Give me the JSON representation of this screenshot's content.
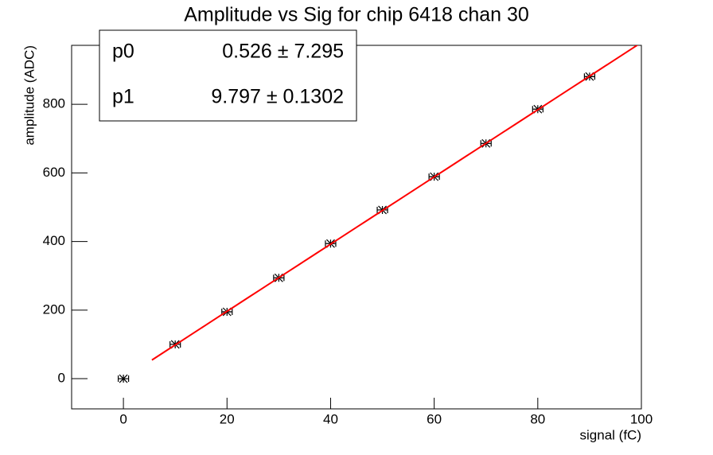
{
  "chart_data": {
    "type": "scatter",
    "title": "Amplitude vs Sig for chip 6418 chan 30",
    "x_label": "signal (fC)",
    "y_label": "amplitude (ADC)",
    "x": [
      0,
      10,
      20,
      30,
      40,
      50,
      60,
      70,
      80,
      90
    ],
    "xerr": [
      1,
      1,
      1,
      1,
      1,
      1,
      1,
      1,
      1,
      1
    ],
    "series": [
      {
        "color": "#000000",
        "values": [
          0,
          100,
          195,
          294,
          394,
          492,
          589,
          686,
          786,
          881
        ]
      }
    ],
    "xlim": [
      -10,
      100
    ],
    "ylim": [
      -88,
      972
    ],
    "xticks": [
      0,
      20,
      40,
      60,
      80,
      100
    ],
    "yticks": [
      0,
      200,
      400,
      600,
      800
    ],
    "fit": {
      "color": "#ff0000",
      "range": [
        5.5,
        100
      ]
    },
    "stats": [
      {
        "name": "p0",
        "label": "0.526 ± 7.295",
        "value": 0.526,
        "error": 7.295
      },
      {
        "name": "p1",
        "label": "9.797 ± 0.1302",
        "value": 9.797,
        "error": 0.1302
      }
    ]
  }
}
